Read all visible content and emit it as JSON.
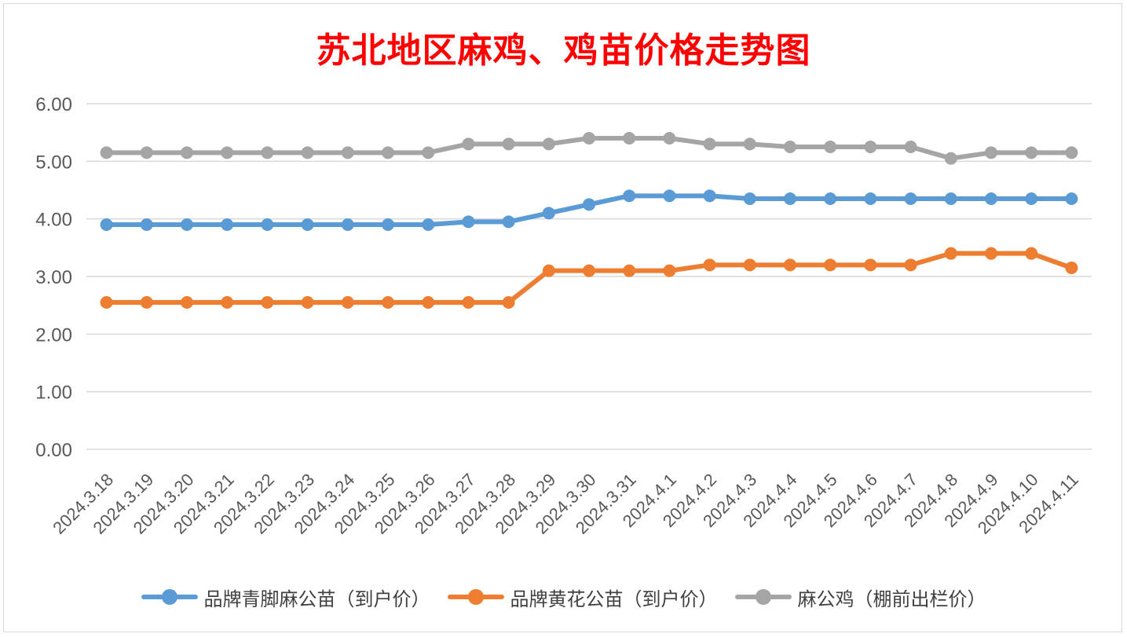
{
  "chart_data": {
    "type": "line",
    "title": "苏北地区麻鸡、鸡苗价格走势图",
    "ylim": [
      0,
      6
    ],
    "ytick_step": 1,
    "grid": true,
    "legend_position": "bottom",
    "categories": [
      "2024.3.18",
      "2024.3.19",
      "2024.3.20",
      "2024.3.21",
      "2024.3.22",
      "2024.3.23",
      "2024.3.24",
      "2024.3.25",
      "2024.3.26",
      "2024.3.27",
      "2024.3.28",
      "2024.3.29",
      "2024.3.30",
      "2024.3.31",
      "2024.4.1",
      "2024.4.2",
      "2024.4.3",
      "2024.4.4",
      "2024.4.5",
      "2024.4.6",
      "2024.4.7",
      "2024.4.8",
      "2024.4.9",
      "2024.4.10",
      "2024.4.11"
    ],
    "series": [
      {
        "name": "品牌青脚麻公苗（到户价）",
        "color": "#5b9bd5",
        "values": [
          3.9,
          3.9,
          3.9,
          3.9,
          3.9,
          3.9,
          3.9,
          3.9,
          3.9,
          3.95,
          3.95,
          4.1,
          4.25,
          4.4,
          4.4,
          4.4,
          4.35,
          4.35,
          4.35,
          4.35,
          4.35,
          4.35,
          4.35,
          4.35,
          4.35
        ]
      },
      {
        "name": "品牌黄花公苗（到户价）",
        "color": "#ed7d31",
        "values": [
          2.55,
          2.55,
          2.55,
          2.55,
          2.55,
          2.55,
          2.55,
          2.55,
          2.55,
          2.55,
          2.55,
          3.1,
          3.1,
          3.1,
          3.1,
          3.2,
          3.2,
          3.2,
          3.2,
          3.2,
          3.2,
          3.4,
          3.4,
          3.4,
          3.15
        ]
      },
      {
        "name": "麻公鸡（棚前出栏价）",
        "color": "#a5a5a5",
        "values": [
          5.15,
          5.15,
          5.15,
          5.15,
          5.15,
          5.15,
          5.15,
          5.15,
          5.15,
          5.3,
          5.3,
          5.3,
          5.4,
          5.4,
          5.4,
          5.3,
          5.3,
          5.25,
          5.25,
          5.25,
          5.25,
          5.05,
          5.15,
          5.15,
          5.15
        ]
      }
    ]
  }
}
